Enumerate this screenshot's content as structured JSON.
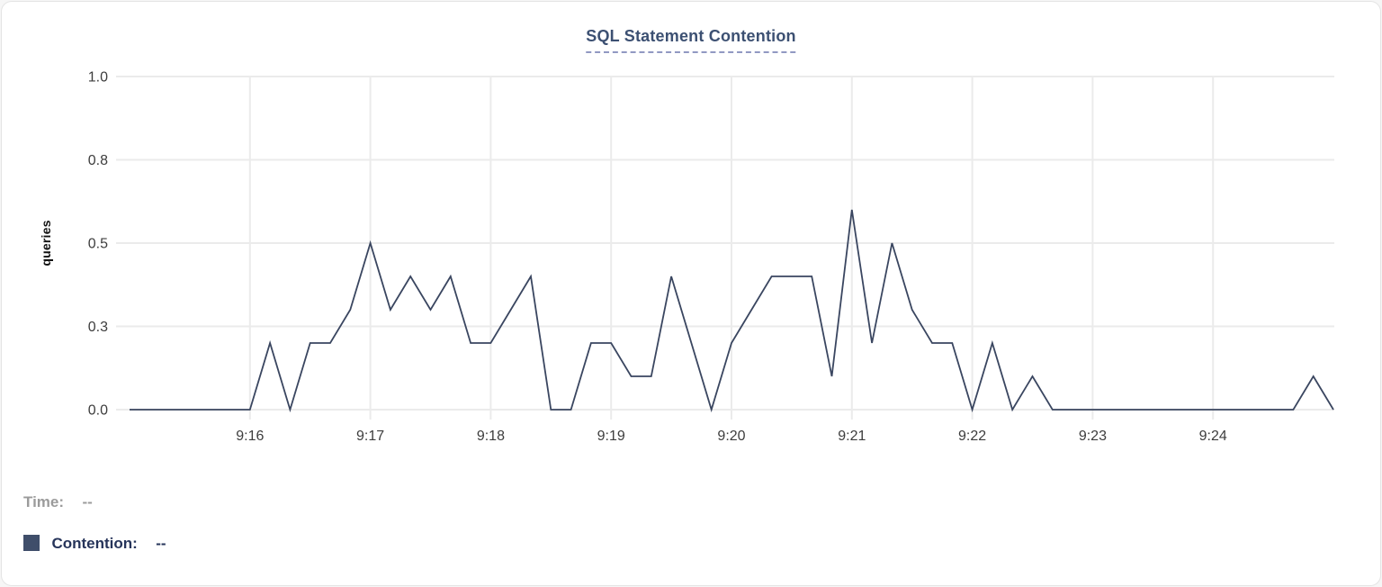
{
  "chart_data": {
    "type": "line",
    "title": "SQL Statement Contention",
    "ylabel": "queries",
    "xlabel": "",
    "grid": true,
    "x_axis": {
      "tick_labels": [
        "9:16",
        "9:17",
        "9:18",
        "9:19",
        "9:20",
        "9:21",
        "9:22",
        "9:23",
        "9:24"
      ],
      "start_time": "9:15:00",
      "end_time": "9:25:00",
      "point_interval_seconds": 10
    },
    "y_axis": {
      "range": [
        0,
        1
      ],
      "tick_values": [
        0,
        0.25,
        0.5,
        0.75,
        1
      ],
      "tick_labels": [
        "0.0",
        "0.3",
        "0.5",
        "0.8",
        "1.0"
      ]
    },
    "series": [
      {
        "name": "Contention",
        "color": "#3a4660",
        "values": [
          0,
          0,
          0,
          0,
          0,
          0,
          0,
          0.2,
          0,
          0.2,
          0.2,
          0.3,
          0.5,
          0.3,
          0.4,
          0.3,
          0.4,
          0.2,
          0.2,
          0.3,
          0.4,
          0,
          0,
          0.2,
          0.2,
          0.1,
          0.1,
          0.4,
          0.2,
          0,
          0.2,
          0.3,
          0.4,
          0.4,
          0.4,
          0.1,
          0.6,
          0.2,
          0.5,
          0.3,
          0.2,
          0.2,
          0,
          0.2,
          0,
          0.1,
          0,
          0,
          0,
          0,
          0,
          0,
          0,
          0,
          0,
          0,
          0,
          0,
          0,
          0.1,
          0
        ]
      }
    ],
    "legend_position": "bottom-left"
  },
  "legend": {
    "time_label": "Time:",
    "time_value": "--",
    "contention_label": "Contention:",
    "contention_value": "--",
    "swatch_color": "#3f4e6a"
  },
  "colors": {
    "line": "#3a4660",
    "title": "#3c5072",
    "title_underline": "#9199c2",
    "grid": "#ebebeb",
    "tick_text": "#3d3d3d"
  }
}
